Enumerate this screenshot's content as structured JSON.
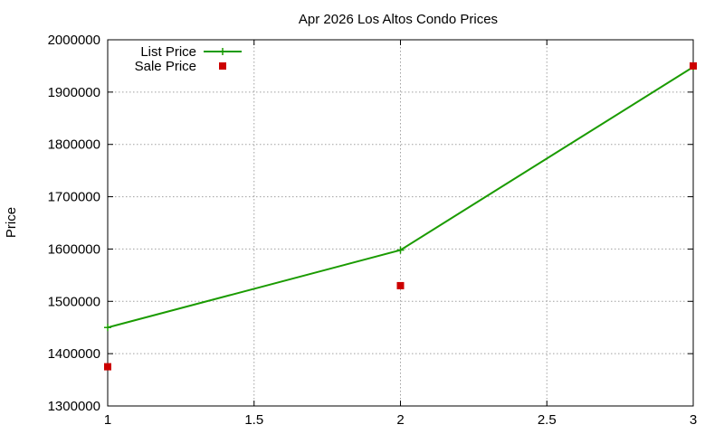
{
  "chart_data": {
    "type": "line",
    "title": "Apr 2026 Los Altos Condo Prices",
    "xlabel": "",
    "ylabel": "Price",
    "xlim": [
      1,
      3
    ],
    "ylim": [
      1300000,
      2000000
    ],
    "x_ticks": [
      1,
      1.5,
      2,
      2.5,
      3
    ],
    "x_tick_labels": [
      "1",
      "1.5",
      "2",
      "2.5",
      "3"
    ],
    "y_ticks": [
      1300000,
      1400000,
      1500000,
      1600000,
      1700000,
      1800000,
      1900000,
      2000000
    ],
    "y_tick_labels": [
      "1300000",
      "1400000",
      "1500000",
      "1600000",
      "1700000",
      "1800000",
      "1900000",
      "2000000"
    ],
    "grid": true,
    "legend_position": "top-left",
    "series": [
      {
        "name": "List Price",
        "style": "linespoints",
        "marker": "plus",
        "color": "#1a9b00",
        "x": [
          1,
          2,
          3
        ],
        "y": [
          1450000,
          1598000,
          1948000
        ]
      },
      {
        "name": "Sale Price",
        "style": "points",
        "marker": "square",
        "color": "#cc0000",
        "x": [
          1,
          2,
          3
        ],
        "y": [
          1375000,
          1530000,
          1950000
        ]
      }
    ]
  }
}
